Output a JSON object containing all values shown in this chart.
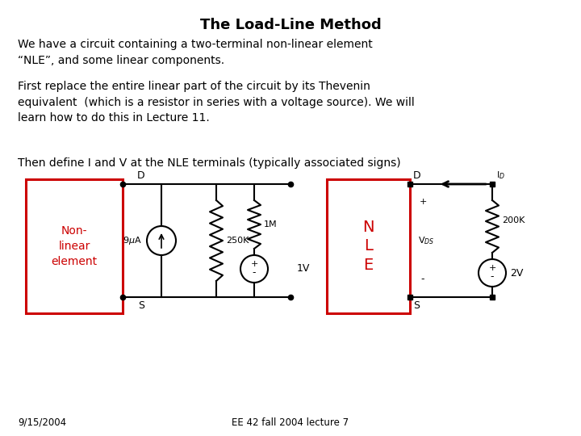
{
  "title": "The Load-Line Method",
  "para1": "We have a circuit containing a two-terminal non-linear element\n“NLE”, and some linear components.",
  "para2": "First replace the entire linear part of the circuit by its Thevenin\nequivalent  (which is a resistor in series with a voltage source). We will\nlearn how to do this in Lecture 11.",
  "para3": "Then define I and V at the NLE terminals (typically associated signs)",
  "footer_left": "9/15/2004",
  "footer_center": "EE 42 fall 2004 lecture 7",
  "bg_color": "#ffffff",
  "text_color": "#000000",
  "red_color": "#cc0000",
  "title_fontsize": 13,
  "body_fontsize": 10,
  "footer_fontsize": 8.5,
  "circuit_fontsize": 8,
  "nle_fontsize": 12
}
